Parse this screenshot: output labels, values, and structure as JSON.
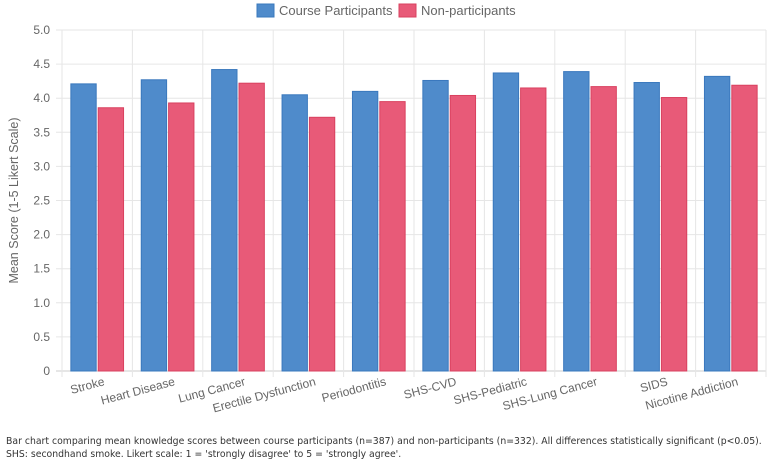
{
  "chart_data": {
    "type": "bar",
    "title": "",
    "xlabel": "",
    "ylabel": "Mean Score (1-5 Likert Scale)",
    "ylim": [
      0,
      5
    ],
    "yticks": [
      "0",
      "0.5",
      "1.0",
      "1.5",
      "2.0",
      "2.5",
      "3.0",
      "3.5",
      "4.0",
      "4.5",
      "5.0"
    ],
    "grid": true,
    "legend_position": "top-center",
    "categories": [
      "Stroke",
      "Heart Disease",
      "Lung Cancer",
      "Erectile Dysfunction",
      "Periodontitis",
      "SHS-CVD",
      "SHS-Pediatric",
      "SHS-Lung Cancer",
      "SIDS",
      "Nicotine Addiction"
    ],
    "series": [
      {
        "name": "Course Participants",
        "color": "#4f8bcb",
        "border": "#3a78bd",
        "values": [
          4.21,
          4.27,
          4.42,
          4.05,
          4.1,
          4.26,
          4.37,
          4.39,
          4.23,
          4.32
        ]
      },
      {
        "name": "Non-participants",
        "color": "#e85a78",
        "border": "#d9415f",
        "values": [
          3.86,
          3.93,
          4.22,
          3.72,
          3.95,
          4.04,
          4.15,
          4.17,
          4.01,
          4.19
        ]
      }
    ]
  },
  "caption": "Bar chart comparing mean knowledge scores between course participants (n=387) and non-participants (n=332). All differences statistically significant (p<0.05). SHS: secondhand smoke. Likert scale: 1 = 'strongly disagree' to 5 = 'strongly agree'."
}
